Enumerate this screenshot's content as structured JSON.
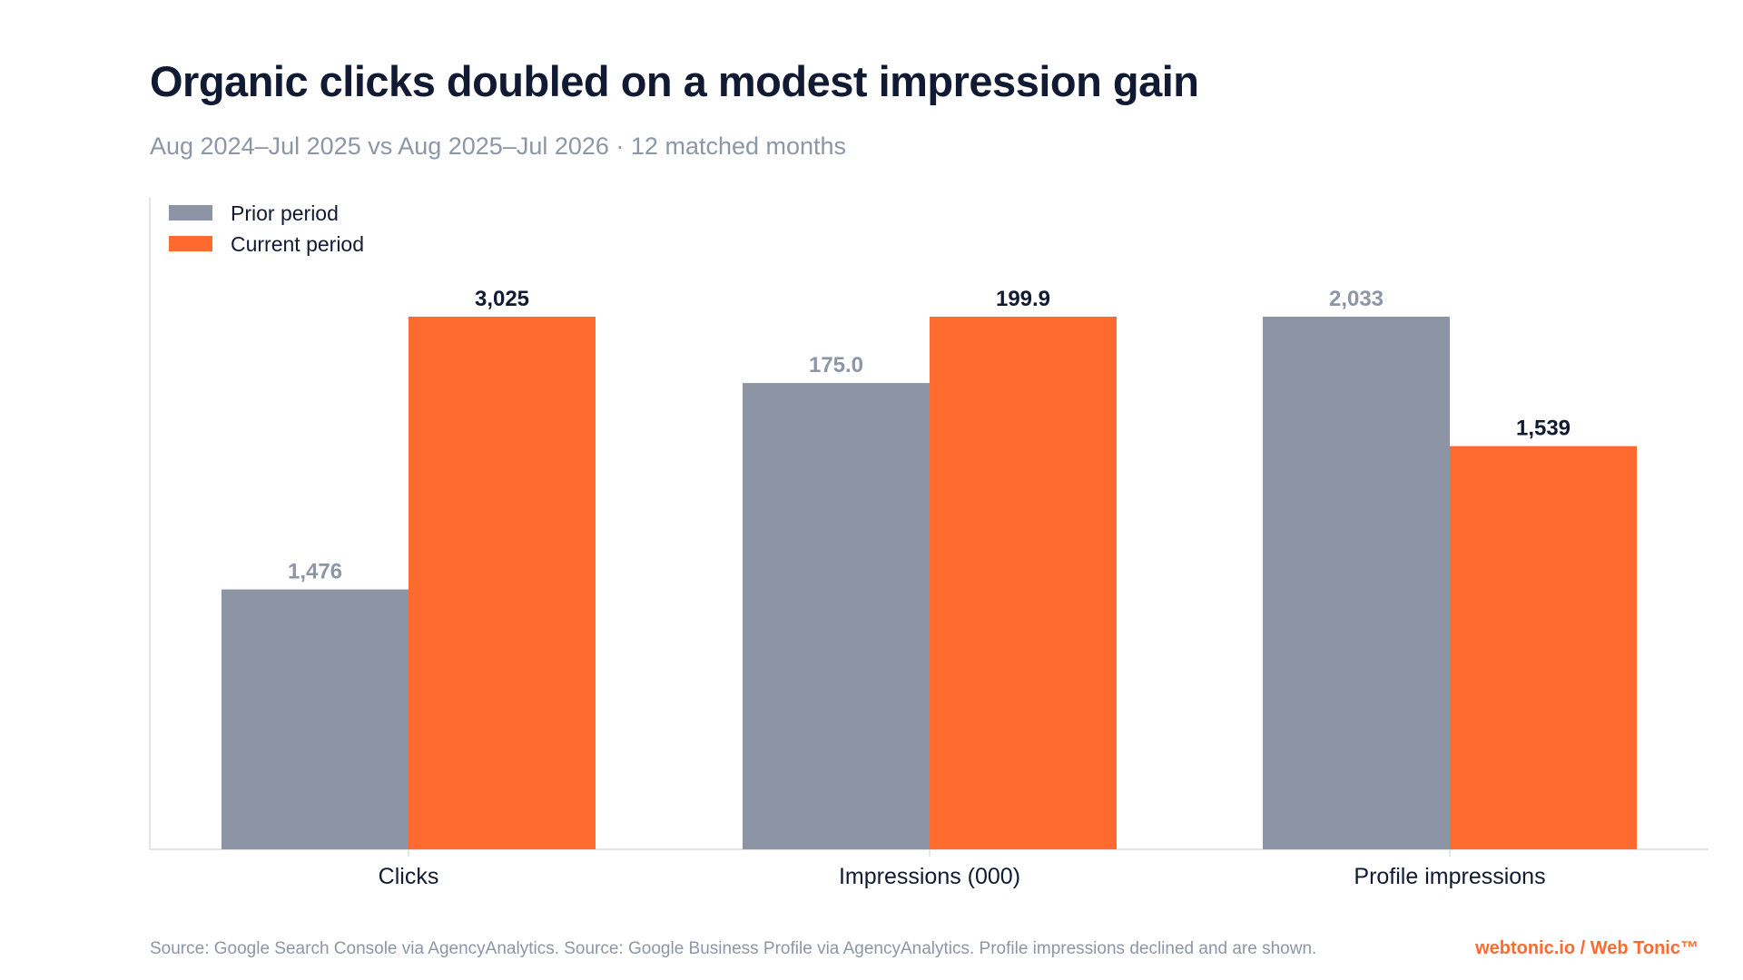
{
  "page": {
    "title": "Organic clicks doubled on a modest impression gain",
    "subtitle": "Aug 2024–Jul 2025 vs Aug 2025–Jul 2026 · 12 matched months",
    "source": "Source: Google Search Console via AgencyAnalytics. Source: Google Business Profile via AgencyAnalytics. Profile impressions declined and are shown.",
    "brand": "webtonic.io / Web Tonic™"
  },
  "colors": {
    "prior": "#8c94a6",
    "current": "#ff6b2e",
    "prior_label": "#8d96a7",
    "current_label": "#101b33",
    "axis": "#d9dce2",
    "tick_label": "#101b33"
  },
  "chart_data": {
    "type": "bar",
    "grouped": true,
    "categories": [
      "Clicks",
      "Impressions (000)",
      "Profile impressions"
    ],
    "series": [
      {
        "name": "Prior period",
        "values": [
          1476,
          175.0,
          2033
        ],
        "labels": [
          "1,476",
          "175.0",
          "2,033"
        ]
      },
      {
        "name": "Current period",
        "values": [
          3025,
          199.9,
          1539
        ],
        "labels": [
          "3,025",
          "199.9",
          "1,539"
        ]
      }
    ],
    "scaling": "each category scaled to its own maximum",
    "legend": "top-left",
    "grid": false
  }
}
